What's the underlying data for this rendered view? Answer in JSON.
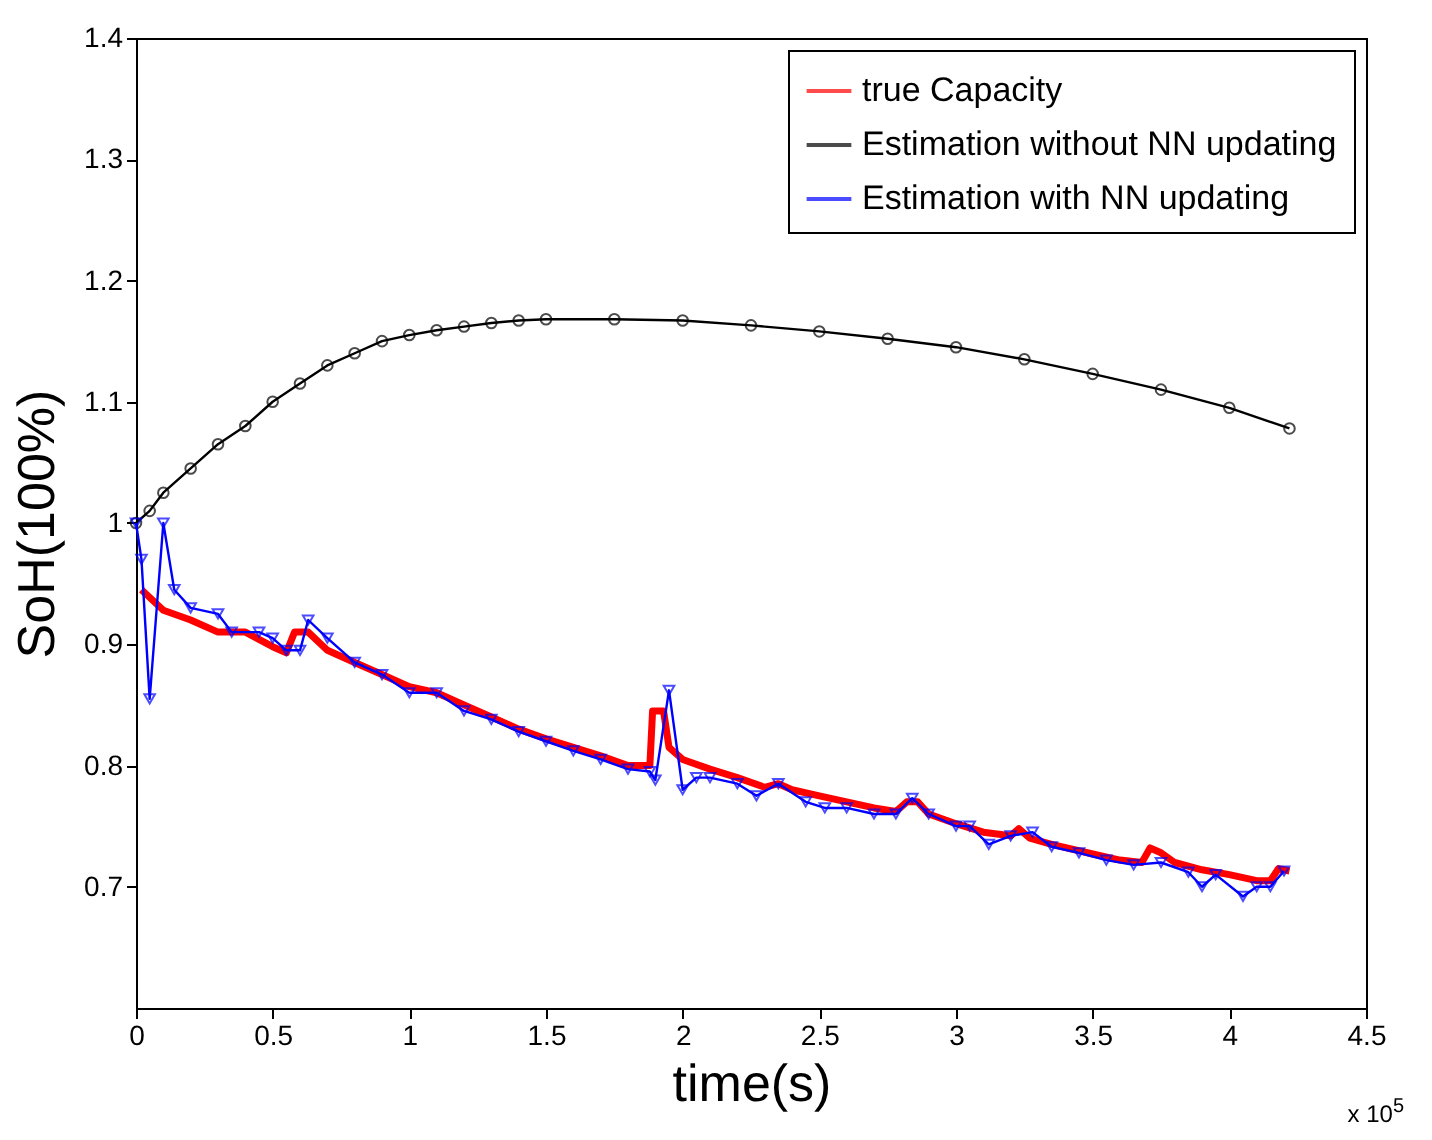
{
  "chart_data": {
    "type": "line",
    "xlabel": "time(s)",
    "ylabel": "SoH(100%)",
    "xlim": [
      0,
      4.5
    ],
    "xticks": [
      0,
      0.5,
      1,
      1.5,
      2,
      2.5,
      3,
      3.5,
      4,
      4.5
    ],
    "ylim": [
      0.6,
      1.4
    ],
    "yticks": [
      0.7,
      0.8,
      0.9,
      1,
      1.1,
      1.2,
      1.3,
      1.4
    ],
    "grid": false,
    "legend": "top right",
    "line_style": "solid",
    "annotations": [
      "x 10$^{5}$"
    ],
    "series": [
      {
        "name": "true Capacity",
        "color": "#ff0000",
        "marker": "none",
        "x": [
          0.02,
          0.1,
          0.2,
          0.3,
          0.4,
          0.5,
          0.55,
          0.58,
          0.63,
          0.7,
          0.8,
          0.9,
          1.0,
          1.1,
          1.2,
          1.3,
          1.4,
          1.5,
          1.6,
          1.7,
          1.8,
          1.88,
          1.89,
          1.93,
          1.95,
          2.0,
          2.1,
          2.2,
          2.3,
          2.35,
          2.4,
          2.5,
          2.6,
          2.7,
          2.78,
          2.82,
          2.86,
          2.9,
          3.0,
          3.1,
          3.2,
          3.23,
          3.27,
          3.35,
          3.5,
          3.6,
          3.68,
          3.71,
          3.75,
          3.8,
          3.9,
          4.0,
          4.1,
          4.15,
          4.18,
          4.22
        ],
        "values": [
          0.945,
          0.928,
          0.92,
          0.91,
          0.91,
          0.898,
          0.893,
          0.91,
          0.91,
          0.895,
          0.885,
          0.875,
          0.865,
          0.86,
          0.85,
          0.84,
          0.83,
          0.822,
          0.815,
          0.808,
          0.8,
          0.8,
          0.845,
          0.845,
          0.815,
          0.805,
          0.797,
          0.79,
          0.782,
          0.785,
          0.78,
          0.775,
          0.77,
          0.765,
          0.762,
          0.77,
          0.77,
          0.76,
          0.752,
          0.745,
          0.742,
          0.748,
          0.74,
          0.735,
          0.727,
          0.722,
          0.72,
          0.732,
          0.728,
          0.72,
          0.714,
          0.71,
          0.705,
          0.705,
          0.715,
          0.713
        ]
      },
      {
        "name": "Estimation without NN updating",
        "color": "#000000",
        "marker": "circle",
        "x": [
          0,
          0.05,
          0.1,
          0.2,
          0.3,
          0.4,
          0.5,
          0.6,
          0.7,
          0.8,
          0.9,
          1.0,
          1.1,
          1.2,
          1.3,
          1.4,
          1.5,
          1.75,
          2.0,
          2.25,
          2.5,
          2.75,
          3.0,
          3.25,
          3.5,
          3.75,
          4.0,
          4.22
        ],
        "values": [
          1.0,
          1.01,
          1.025,
          1.045,
          1.065,
          1.08,
          1.1,
          1.115,
          1.13,
          1.14,
          1.15,
          1.155,
          1.159,
          1.162,
          1.165,
          1.167,
          1.168,
          1.168,
          1.167,
          1.163,
          1.158,
          1.152,
          1.145,
          1.135,
          1.123,
          1.11,
          1.095,
          1.078
        ]
      },
      {
        "name": "Estimation with NN updating",
        "color": "#0000ff",
        "marker": "triangle",
        "x": [
          0,
          0.02,
          0.05,
          0.1,
          0.14,
          0.2,
          0.3,
          0.35,
          0.45,
          0.5,
          0.55,
          0.6,
          0.63,
          0.7,
          0.8,
          0.9,
          1.0,
          1.1,
          1.2,
          1.3,
          1.4,
          1.5,
          1.6,
          1.7,
          1.8,
          1.88,
          1.9,
          1.95,
          2.0,
          2.05,
          2.1,
          2.2,
          2.27,
          2.35,
          2.45,
          2.52,
          2.6,
          2.7,
          2.78,
          2.84,
          2.9,
          3.0,
          3.05,
          3.12,
          3.2,
          3.28,
          3.35,
          3.45,
          3.55,
          3.65,
          3.75,
          3.85,
          3.9,
          3.95,
          4.05,
          4.1,
          4.15,
          4.2
        ],
        "values": [
          1.0,
          0.97,
          0.855,
          1.0,
          0.945,
          0.93,
          0.925,
          0.91,
          0.91,
          0.905,
          0.895,
          0.895,
          0.92,
          0.905,
          0.885,
          0.875,
          0.86,
          0.86,
          0.845,
          0.838,
          0.828,
          0.82,
          0.812,
          0.805,
          0.797,
          0.795,
          0.788,
          0.862,
          0.78,
          0.79,
          0.79,
          0.785,
          0.775,
          0.785,
          0.77,
          0.765,
          0.765,
          0.76,
          0.76,
          0.773,
          0.76,
          0.75,
          0.75,
          0.735,
          0.742,
          0.745,
          0.733,
          0.728,
          0.722,
          0.718,
          0.72,
          0.712,
          0.7,
          0.71,
          0.692,
          0.7,
          0.7,
          0.713
        ]
      }
    ]
  }
}
